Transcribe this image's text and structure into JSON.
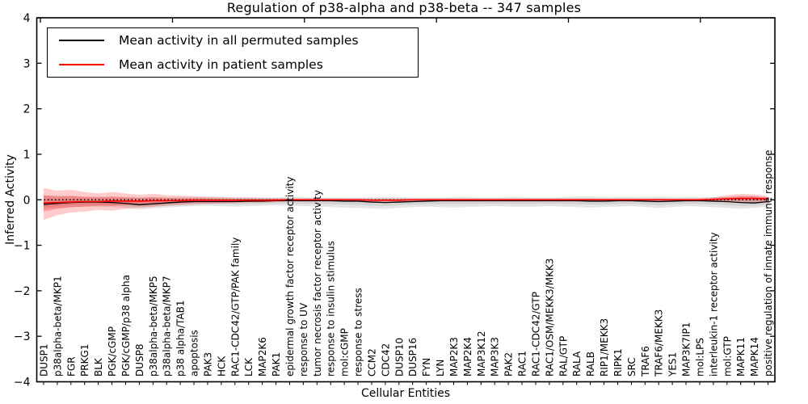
{
  "chart_data": {
    "type": "line",
    "title": "Regulation of p38-alpha and p38-beta -- 347 samples",
    "xlabel": "Cellular Entities",
    "ylabel": "Inferred Activity",
    "ylim": [
      -4,
      4
    ],
    "yticks": [
      -4,
      -3,
      -2,
      -1,
      0,
      1,
      2,
      3,
      4
    ],
    "grid": false,
    "legend_position": "upper left",
    "baseline": {
      "y": 0,
      "style": "dotted",
      "color": "#000000"
    },
    "categories": [
      "DUSP1",
      "p38alpha-beta/MKP1",
      "FGR",
      "PRKG1",
      "BLK",
      "PGK/cGMP",
      "PGK/cGMP/p38 alpha",
      "DUSP8",
      "p38alpha-beta/MKP5",
      "p38alpha-beta/MKP7",
      "p38 alpha/TAB1",
      "apoptosis",
      "PAK3",
      "HCK",
      "RAC1-CDC42/GTP/PAK family",
      "LCK",
      "MAP2K6",
      "PAK1",
      "epidermal growth factor receptor activity",
      "response to UV",
      "tumor necrosis factor receptor activity",
      "response to insulin stimulus",
      "mol:cGMP",
      "response to stress",
      "CCM2",
      "CDC42",
      "DUSP10",
      "DUSP16",
      "FYN",
      "LYN",
      "MAP2K3",
      "MAP2K4",
      "MAP3K12",
      "MAP3K3",
      "PAK2",
      "RAC1",
      "RAC1-CDC42/GTP",
      "RAC1/OSM/MEKK3/MKK3",
      "RAL/GTP",
      "RALA",
      "RALB",
      "RIP1/MEKK3",
      "RIPK1",
      "SRC",
      "TRAF6",
      "TRAF6/MEKK3",
      "YES1",
      "MAP3K7IP1",
      "mol:LPS",
      "interleukin-1 receptor activity",
      "mol:GTP",
      "MAPK11",
      "MAPK14",
      "positive regulation of innate immune response"
    ],
    "series": [
      {
        "name": "Mean activity in all permuted samples",
        "color": "#000000",
        "band_color": "rgba(0,0,0,0.10)",
        "values": [
          -0.1,
          -0.08,
          -0.06,
          -0.05,
          -0.05,
          -0.06,
          -0.08,
          -0.11,
          -0.09,
          -0.07,
          -0.05,
          -0.04,
          -0.04,
          -0.04,
          -0.04,
          -0.03,
          -0.03,
          -0.02,
          -0.02,
          -0.02,
          -0.02,
          -0.02,
          -0.03,
          -0.03,
          -0.05,
          -0.06,
          -0.05,
          -0.04,
          -0.03,
          -0.02,
          -0.02,
          -0.02,
          -0.02,
          -0.02,
          -0.02,
          -0.02,
          -0.02,
          -0.02,
          -0.02,
          -0.02,
          -0.03,
          -0.03,
          -0.02,
          -0.02,
          -0.03,
          -0.04,
          -0.03,
          -0.02,
          -0.02,
          -0.03,
          -0.04,
          -0.06,
          -0.07,
          -0.04
        ],
        "band_hi": [
          0.1,
          0.09,
          0.08,
          0.07,
          0.07,
          0.07,
          0.06,
          0.06,
          0.06,
          0.06,
          0.06,
          0.06,
          0.06,
          0.06,
          0.05,
          0.05,
          0.05,
          0.05,
          0.06,
          0.06,
          0.05,
          0.05,
          0.05,
          0.05,
          0.05,
          0.06,
          0.06,
          0.05,
          0.05,
          0.05,
          0.06,
          0.06,
          0.05,
          0.05,
          0.06,
          0.06,
          0.05,
          0.05,
          0.06,
          0.07,
          0.07,
          0.06,
          0.06,
          0.06,
          0.06,
          0.07,
          0.06,
          0.06,
          0.06,
          0.06,
          0.06,
          0.07,
          0.07,
          0.06
        ],
        "band_lo": [
          -0.2,
          -0.18,
          -0.16,
          -0.15,
          -0.15,
          -0.16,
          -0.18,
          -0.21,
          -0.19,
          -0.17,
          -0.15,
          -0.14,
          -0.13,
          -0.14,
          -0.15,
          -0.14,
          -0.13,
          -0.12,
          -0.13,
          -0.14,
          -0.15,
          -0.16,
          -0.17,
          -0.18,
          -0.19,
          -0.2,
          -0.18,
          -0.16,
          -0.15,
          -0.16,
          -0.17,
          -0.16,
          -0.15,
          -0.14,
          -0.15,
          -0.16,
          -0.15,
          -0.14,
          -0.15,
          -0.16,
          -0.17,
          -0.16,
          -0.15,
          -0.14,
          -0.16,
          -0.18,
          -0.16,
          -0.14,
          -0.15,
          -0.16,
          -0.18,
          -0.2,
          -0.18,
          -0.15
        ]
      },
      {
        "name": "Mean activity in patient samples",
        "color": "#ff0000",
        "band_color": "rgba(255,0,0,0.20)",
        "values": [
          -0.07,
          -0.06,
          -0.05,
          -0.04,
          -0.04,
          -0.03,
          -0.03,
          -0.03,
          -0.02,
          -0.02,
          -0.02,
          -0.01,
          -0.01,
          -0.01,
          -0.01,
          -0.01,
          -0.01,
          -0.01,
          0,
          0,
          0,
          0,
          0,
          0,
          -0.01,
          -0.01,
          -0.01,
          0,
          0,
          0,
          0,
          0,
          0,
          0,
          0,
          0,
          0,
          0,
          0,
          0,
          0,
          0,
          0,
          0,
          0,
          0,
          0,
          0,
          0,
          0.01,
          0.02,
          0.03,
          0.03,
          0.02
        ],
        "band_hi": [
          0.26,
          0.2,
          0.22,
          0.17,
          0.14,
          0.17,
          0.14,
          0.11,
          0.13,
          0.1,
          0.09,
          0.08,
          0.07,
          0.06,
          0.05,
          0.05,
          0.04,
          0.04,
          0.03,
          0.03,
          0.03,
          0.03,
          0.03,
          0.03,
          0.03,
          0.03,
          0.03,
          0.03,
          0.03,
          0.03,
          0.03,
          0.03,
          0.03,
          0.03,
          0.03,
          0.03,
          0.03,
          0.03,
          0.03,
          0.03,
          0.03,
          0.03,
          0.03,
          0.03,
          0.03,
          0.03,
          0.03,
          0.03,
          0.03,
          0.05,
          0.1,
          0.13,
          0.12,
          0.08
        ],
        "band_lo": [
          -0.44,
          -0.34,
          -0.28,
          -0.26,
          -0.22,
          -0.24,
          -0.2,
          -0.17,
          -0.16,
          -0.13,
          -0.12,
          -0.1,
          -0.09,
          -0.08,
          -0.07,
          -0.06,
          -0.06,
          -0.05,
          -0.04,
          -0.04,
          -0.04,
          -0.04,
          -0.04,
          -0.04,
          -0.04,
          -0.04,
          -0.04,
          -0.04,
          -0.04,
          -0.04,
          -0.04,
          -0.04,
          -0.04,
          -0.04,
          -0.04,
          -0.04,
          -0.04,
          -0.04,
          -0.04,
          -0.04,
          -0.04,
          -0.04,
          -0.04,
          -0.04,
          -0.04,
          -0.04,
          -0.04,
          -0.04,
          -0.04,
          -0.04,
          -0.05,
          -0.06,
          -0.06,
          -0.05
        ]
      }
    ]
  }
}
